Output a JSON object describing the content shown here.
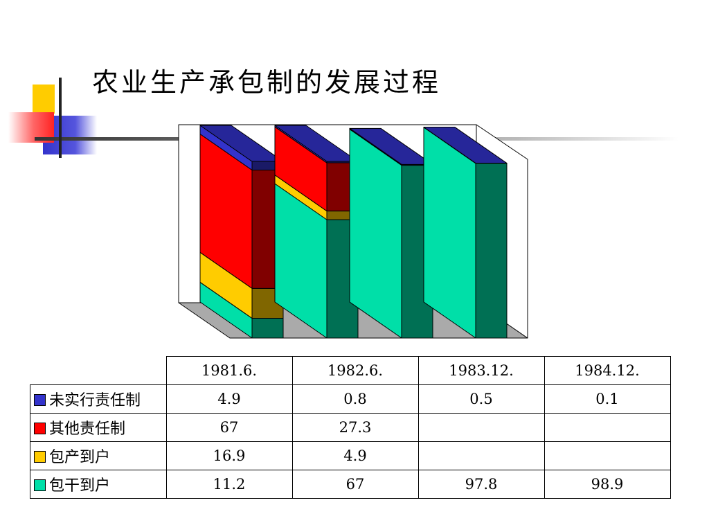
{
  "title": "农业生产承包制的发展过程",
  "colors": {
    "未实行责任制": "#3333cc",
    "其他责任制": "#ff0000",
    "包产到户": "#ffcc00",
    "包干到户": "#00dfa8"
  },
  "chart_data": {
    "type": "bar",
    "stacked": true,
    "three_d": true,
    "categories": [
      "1981.6.",
      "1982.6.",
      "1983.12.",
      "1984.12."
    ],
    "ylim": [
      0,
      100
    ],
    "legend": "table-bottom",
    "series": [
      {
        "name": "包干到户",
        "values": [
          11.2,
          67,
          97.8,
          98.9
        ]
      },
      {
        "name": "包产到户",
        "values": [
          16.9,
          4.9,
          null,
          null
        ]
      },
      {
        "name": "其他责任制",
        "values": [
          67,
          27.3,
          null,
          null
        ]
      },
      {
        "name": "未实行责任制",
        "values": [
          4.9,
          0.8,
          0.5,
          0.1
        ]
      }
    ]
  },
  "table": {
    "header": [
      "1981.6.",
      "1982.6.",
      "1983.12.",
      "1984.12."
    ],
    "rows": [
      {
        "label": "未实行责任制",
        "values": [
          "4.9",
          "0.8",
          "0.5",
          "0.1"
        ]
      },
      {
        "label": "其他责任制",
        "values": [
          "67",
          "27.3",
          "",
          ""
        ]
      },
      {
        "label": "包产到户",
        "values": [
          "16.9",
          "4.9",
          "",
          ""
        ]
      },
      {
        "label": "包干到户",
        "values": [
          "11.2",
          "67",
          "97.8",
          "98.9"
        ]
      }
    ]
  }
}
